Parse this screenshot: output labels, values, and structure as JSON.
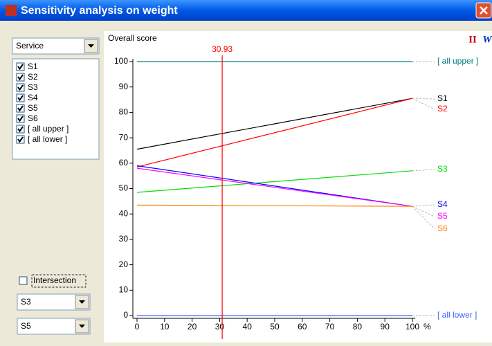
{
  "window": {
    "title": "Sensitivity analysis on weight",
    "selector": "Service",
    "items": [
      {
        "label": "S1",
        "checked": true
      },
      {
        "label": "S2",
        "checked": true
      },
      {
        "label": "S3",
        "checked": true
      },
      {
        "label": "S4",
        "checked": true
      },
      {
        "label": "S5",
        "checked": true
      },
      {
        "label": "S6",
        "checked": true
      },
      {
        "label": "[ all upper ]",
        "checked": true
      },
      {
        "label": "[ all lower ]",
        "checked": true
      }
    ],
    "intersection": {
      "label": "Intersection",
      "checked": false
    },
    "pair": [
      "S3",
      "S5"
    ],
    "buttons": [
      "II",
      "W"
    ]
  },
  "chart_data": {
    "type": "line",
    "ylabel": "Overall score",
    "x_unit": "%",
    "x": [
      0,
      100
    ],
    "xlim": [
      0,
      100
    ],
    "xticks": [
      0,
      10,
      20,
      30,
      40,
      50,
      60,
      70,
      80,
      90,
      100
    ],
    "ylim": [
      0,
      100
    ],
    "yticks": [
      0,
      10,
      20,
      30,
      40,
      50,
      60,
      70,
      80,
      90,
      100
    ],
    "marker": 30.93,
    "marker_color": "#ff0000",
    "series": [
      {
        "name": "S1",
        "color": "#000000",
        "values": [
          65.5,
          85.5
        ]
      },
      {
        "name": "S2",
        "color": "#ff0000",
        "values": [
          58.5,
          85.5
        ]
      },
      {
        "name": "S3",
        "color": "#00dd00",
        "values": [
          48.5,
          57
        ]
      },
      {
        "name": "S4",
        "color": "#0000ff",
        "values": [
          59,
          43
        ]
      },
      {
        "name": "S5",
        "color": "#ff00ff",
        "values": [
          58,
          43
        ]
      },
      {
        "name": "S6",
        "color": "#ff8000",
        "values": [
          43.5,
          43
        ]
      },
      {
        "name": "[ all upper ]",
        "color": "#008080",
        "values": [
          100,
          100
        ]
      },
      {
        "name": "[ all lower ]",
        "color": "#4060ff",
        "values": [
          0,
          0
        ]
      }
    ]
  }
}
